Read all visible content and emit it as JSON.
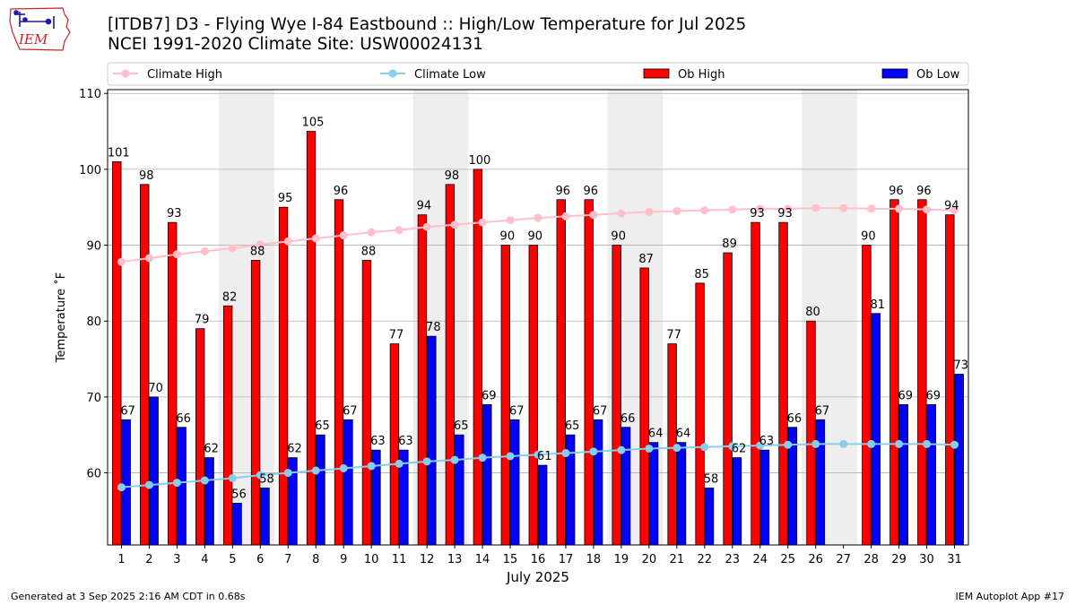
{
  "header": {
    "title_line1": "[ITDB7] D3 - Flying Wye I-84 Eastbound  :: High/Low Temperature for Jul 2025",
    "title_line2": "NCEI 1991-2020 Climate Site: USW00024131",
    "logo_text": "IEM"
  },
  "footer": {
    "generated": "Generated at 3 Sep 2025 2:16 AM CDT in 0.68s",
    "app": "IEM Autoplot App #17"
  },
  "colors": {
    "ob_high": "#ff0000",
    "ob_low": "#0000ff",
    "climate_high": "#ffc0cb",
    "climate_low": "#87ceeb",
    "weekend_shade": "#eeeeee",
    "grid": "#b0b0b0",
    "logo": "#cc2222"
  },
  "chart_data": {
    "type": "bar",
    "xlabel": "July 2025",
    "ylabel": "Temperature ˚F",
    "ylim": [
      50.5,
      110.5
    ],
    "yticks": [
      60,
      70,
      80,
      90,
      100,
      110
    ],
    "grid": "horizontal",
    "legend_position": "top",
    "categories": [
      1,
      2,
      3,
      4,
      5,
      6,
      7,
      8,
      9,
      10,
      11,
      12,
      13,
      14,
      15,
      16,
      17,
      18,
      19,
      20,
      21,
      22,
      23,
      24,
      25,
      26,
      27,
      28,
      29,
      30,
      31
    ],
    "shaded_days": [
      5,
      6,
      12,
      13,
      19,
      20,
      26,
      27
    ],
    "series": [
      {
        "name": "Ob High",
        "kind": "bar",
        "values": [
          101,
          98,
          93,
          79,
          82,
          88,
          95,
          105,
          96,
          88,
          77,
          94,
          98,
          100,
          90,
          90,
          96,
          96,
          90,
          87,
          77,
          85,
          89,
          93,
          93,
          80,
          null,
          90,
          96,
          96,
          94
        ]
      },
      {
        "name": "Ob Low",
        "kind": "bar",
        "values": [
          67,
          70,
          66,
          62,
          56,
          58,
          62,
          65,
          67,
          63,
          63,
          78,
          65,
          69,
          67,
          61,
          65,
          67,
          66,
          64,
          64,
          58,
          62,
          63,
          66,
          67,
          null,
          81,
          69,
          69,
          73
        ]
      },
      {
        "name": "Climate High",
        "kind": "line",
        "values": [
          87.8,
          88.3,
          88.8,
          89.2,
          89.6,
          90.1,
          90.5,
          90.9,
          91.3,
          91.7,
          92.0,
          92.4,
          92.7,
          93.0,
          93.3,
          93.6,
          93.8,
          94.0,
          94.2,
          94.4,
          94.5,
          94.6,
          94.7,
          94.8,
          94.8,
          94.9,
          94.9,
          94.8,
          94.8,
          94.7,
          94.6
        ]
      },
      {
        "name": "Climate Low",
        "kind": "line",
        "values": [
          58.1,
          58.4,
          58.7,
          59.0,
          59.3,
          59.7,
          60.0,
          60.3,
          60.6,
          60.9,
          61.2,
          61.5,
          61.7,
          62.0,
          62.2,
          62.4,
          62.6,
          62.8,
          63.0,
          63.2,
          63.3,
          63.4,
          63.5,
          63.6,
          63.7,
          63.8,
          63.8,
          63.8,
          63.8,
          63.8,
          63.7
        ]
      }
    ],
    "legend": [
      "Climate High",
      "Climate Low",
      "Ob High",
      "Ob Low"
    ]
  }
}
